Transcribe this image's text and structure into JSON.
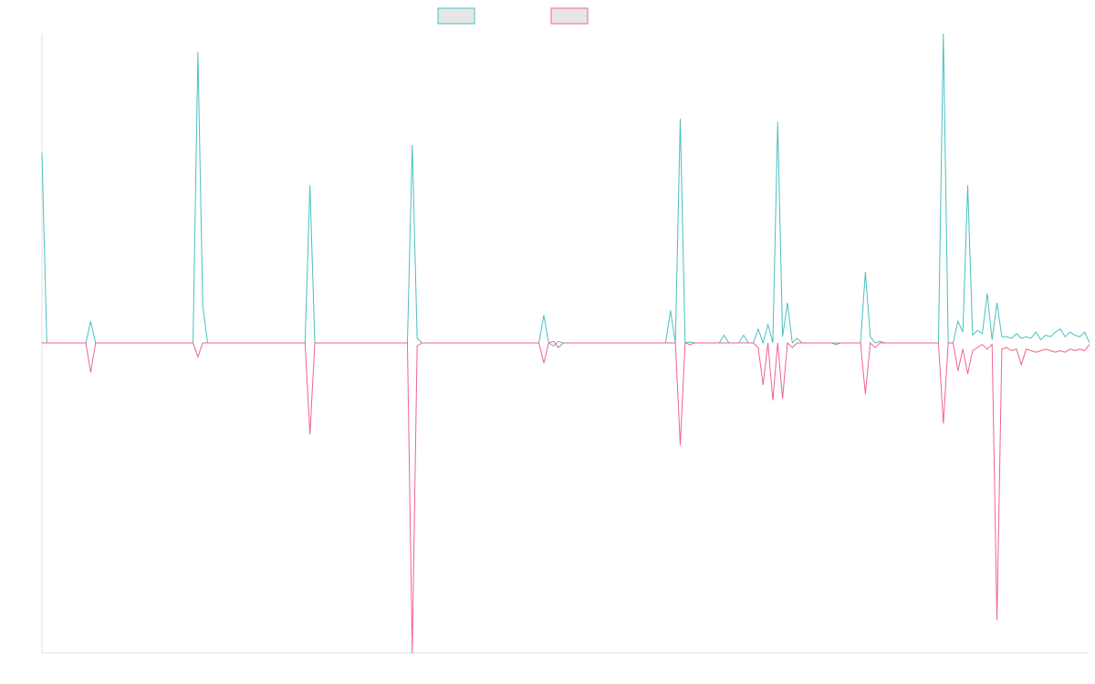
{
  "chart_data": {
    "type": "line",
    "title": "",
    "xlabel": "",
    "ylabel": "",
    "grid": false,
    "legend_position": "top-center",
    "x_points": 215,
    "ylim": [
      -1.0,
      1.0
    ],
    "series": [
      {
        "name": "",
        "color": "#4bc0c0",
        "legend_fill": "#e6e6e6",
        "baseline": 0.0,
        "points": [
          [
            0,
            0.615
          ],
          [
            1,
            0
          ],
          [
            9,
            0
          ],
          [
            10,
            0.07
          ],
          [
            11,
            0
          ],
          [
            31,
            0
          ],
          [
            32,
            0.94
          ],
          [
            33,
            0.12
          ],
          [
            34,
            0
          ],
          [
            54,
            0
          ],
          [
            55,
            0.51
          ],
          [
            56,
            0
          ],
          [
            75,
            0
          ],
          [
            76,
            0.64
          ],
          [
            77,
            0.015
          ],
          [
            78,
            0
          ],
          [
            102,
            0
          ],
          [
            103,
            0.09
          ],
          [
            104,
            0
          ],
          [
            105,
            -0.01
          ],
          [
            106,
            0.005
          ],
          [
            107,
            0
          ],
          [
            128,
            0
          ],
          [
            129,
            0.105
          ],
          [
            130,
            0
          ],
          [
            131,
            0.725
          ],
          [
            132,
            0
          ],
          [
            133,
            0.003
          ],
          [
            134,
            0
          ],
          [
            139,
            0
          ],
          [
            140,
            0.025
          ],
          [
            141,
            0
          ],
          [
            143,
            0
          ],
          [
            144,
            0.025
          ],
          [
            145,
            0
          ],
          [
            146,
            0
          ],
          [
            147,
            0.045
          ],
          [
            148,
            0
          ],
          [
            149,
            0.06
          ],
          [
            150,
            0
          ],
          [
            151,
            0.715
          ],
          [
            152,
            0.02
          ],
          [
            153,
            0.13
          ],
          [
            154,
            0
          ],
          [
            155,
            0.015
          ],
          [
            156,
            0
          ],
          [
            168,
            0
          ],
          [
            169,
            0.23
          ],
          [
            170,
            0.02
          ],
          [
            171,
            0
          ],
          [
            172,
            0.005
          ],
          [
            173,
            0
          ],
          [
            184,
            0
          ],
          [
            185,
            1.0
          ],
          [
            186,
            0
          ],
          [
            187,
            0
          ],
          [
            188,
            0.07
          ],
          [
            189,
            0.035
          ],
          [
            190,
            0.51
          ],
          [
            191,
            0.025
          ],
          [
            192,
            0.04
          ],
          [
            193,
            0.03
          ],
          [
            194,
            0.16
          ],
          [
            195,
            0.01
          ],
          [
            196,
            0.13
          ],
          [
            197,
            0.02
          ],
          [
            198,
            0.02
          ],
          [
            199,
            0.015
          ],
          [
            200,
            0.03
          ],
          [
            201,
            0.015
          ],
          [
            202,
            0.02
          ],
          [
            203,
            0.015
          ],
          [
            204,
            0.035
          ],
          [
            205,
            0.01
          ],
          [
            206,
            0.025
          ],
          [
            207,
            0.02
          ],
          [
            208,
            0.035
          ],
          [
            209,
            0.045
          ],
          [
            210,
            0.02
          ],
          [
            211,
            0.035
          ],
          [
            212,
            0.025
          ],
          [
            213,
            0.02
          ],
          [
            214,
            0.035
          ],
          [
            215,
            0.0
          ]
        ]
      },
      {
        "name": "",
        "color": "#f06292",
        "legend_fill": "#e6e6e6",
        "baseline": 0.0,
        "points": [
          [
            0,
            0
          ],
          [
            9,
            0
          ],
          [
            10,
            -0.095
          ],
          [
            11,
            0
          ],
          [
            31,
            0
          ],
          [
            32,
            -0.045
          ],
          [
            33,
            0
          ],
          [
            54,
            0
          ],
          [
            55,
            -0.295
          ],
          [
            56,
            0
          ],
          [
            75,
            0
          ],
          [
            76,
            -1.0
          ],
          [
            77,
            -0.01
          ],
          [
            78,
            0
          ],
          [
            102,
            0
          ],
          [
            103,
            -0.065
          ],
          [
            104,
            0
          ],
          [
            105,
            0.005
          ],
          [
            106,
            -0.015
          ],
          [
            107,
            0
          ],
          [
            128,
            0
          ],
          [
            129,
            0
          ],
          [
            130,
            0
          ],
          [
            131,
            -0.33
          ],
          [
            132,
            0
          ],
          [
            133,
            -0.005
          ],
          [
            134,
            0
          ],
          [
            139,
            0
          ],
          [
            145,
            0
          ],
          [
            146,
            0
          ],
          [
            147,
            -0.015
          ],
          [
            148,
            -0.135
          ],
          [
            149,
            0
          ],
          [
            150,
            -0.185
          ],
          [
            151,
            0
          ],
          [
            152,
            -0.18
          ],
          [
            153,
            0
          ],
          [
            154,
            -0.015
          ],
          [
            155,
            0
          ],
          [
            162,
            0
          ],
          [
            163,
            -0.005
          ],
          [
            164,
            0
          ],
          [
            168,
            0
          ],
          [
            169,
            -0.165
          ],
          [
            170,
            0
          ],
          [
            171,
            -0.015
          ],
          [
            172,
            0
          ],
          [
            184,
            0
          ],
          [
            185,
            -0.26
          ],
          [
            186,
            0
          ],
          [
            187,
            0
          ],
          [
            188,
            -0.09
          ],
          [
            189,
            -0.02
          ],
          [
            190,
            -0.1
          ],
          [
            191,
            -0.025
          ],
          [
            192,
            -0.015
          ],
          [
            193,
            -0.005
          ],
          [
            194,
            -0.02
          ],
          [
            195,
            -0.005
          ],
          [
            196,
            -0.895
          ],
          [
            197,
            -0.02
          ],
          [
            198,
            -0.015
          ],
          [
            199,
            -0.025
          ],
          [
            200,
            -0.02
          ],
          [
            201,
            -0.07
          ],
          [
            202,
            -0.02
          ],
          [
            203,
            -0.025
          ],
          [
            204,
            -0.03
          ],
          [
            205,
            -0.025
          ],
          [
            206,
            -0.02
          ],
          [
            207,
            -0.025
          ],
          [
            208,
            -0.03
          ],
          [
            209,
            -0.025
          ],
          [
            210,
            -0.03
          ],
          [
            211,
            -0.02
          ],
          [
            212,
            -0.025
          ],
          [
            213,
            -0.02
          ],
          [
            214,
            -0.025
          ],
          [
            215,
            -0.005
          ]
        ]
      }
    ]
  }
}
